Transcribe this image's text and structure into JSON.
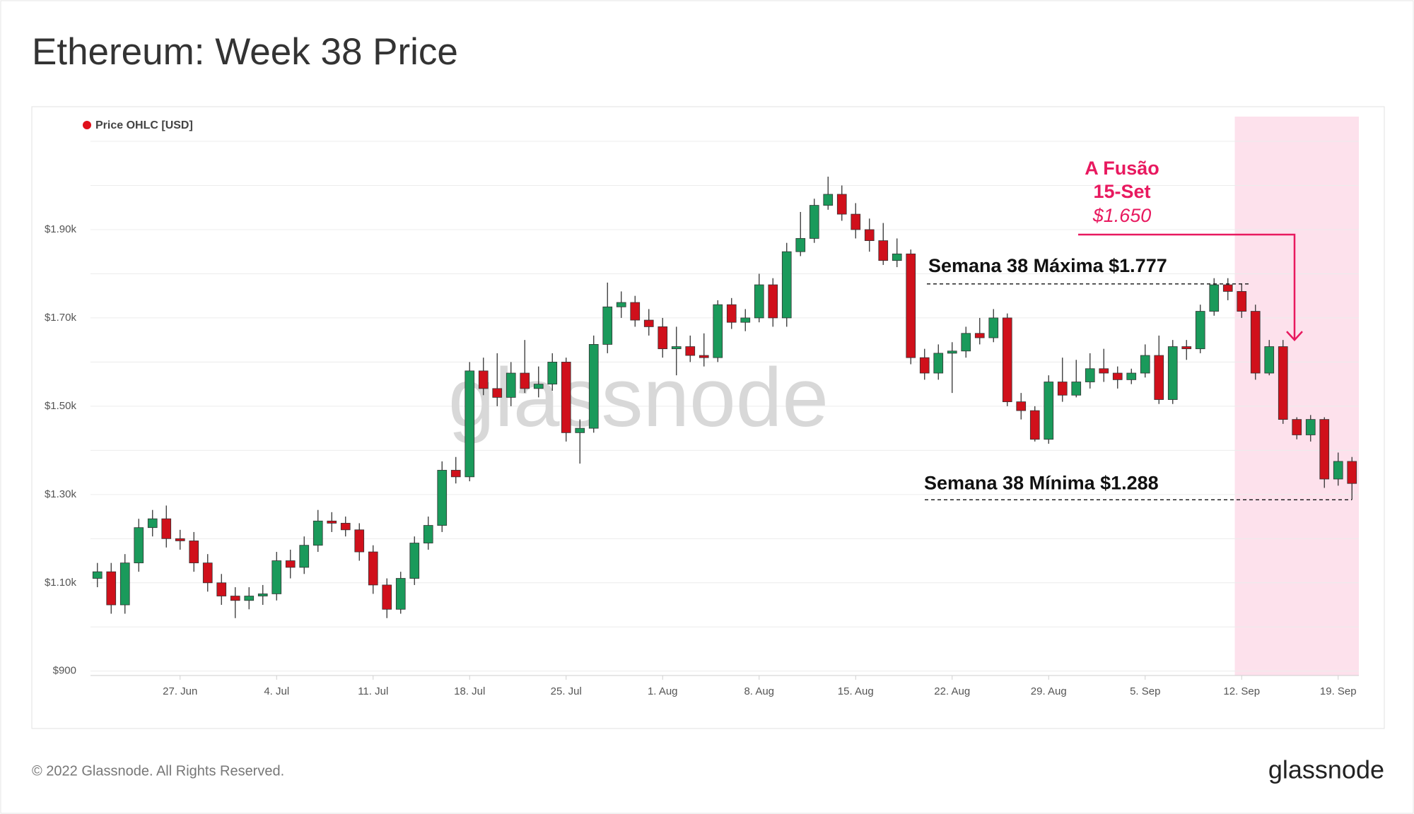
{
  "chart_data": {
    "type": "candlestick",
    "title": "Ethereum: Week 38 Price",
    "legend": "Price OHLC [USD]",
    "legend_color": "#e0101b",
    "watermark": "glassnode",
    "footer": "© 2022 Glassnode. All Rights Reserved.",
    "logo": "glassnode",
    "up_color": "#1a9a5b",
    "down_color": "#d0101b",
    "highlight_from": "Sep 12",
    "highlight_color": "#fde1ec",
    "categories": [
      "Jun 21",
      "Jun 22",
      "Jun 23",
      "Jun 24",
      "Jun 25",
      "Jun 26",
      "Jun 27",
      "Jun 28",
      "Jun 29",
      "Jun 30",
      "Jul 1",
      "Jul 2",
      "Jul 3",
      "Jul 4",
      "Jul 5",
      "Jul 6",
      "Jul 7",
      "Jul 8",
      "Jul 9",
      "Jul 10",
      "Jul 11",
      "Jul 12",
      "Jul 13",
      "Jul 14",
      "Jul 15",
      "Jul 16",
      "Jul 17",
      "Jul 18",
      "Jul 19",
      "Jul 20",
      "Jul 21",
      "Jul 22",
      "Jul 23",
      "Jul 24",
      "Jul 25",
      "Jul 26",
      "Jul 27",
      "Jul 28",
      "Jul 29",
      "Jul 30",
      "Jul 31",
      "Aug 1",
      "Aug 2",
      "Aug 3",
      "Aug 4",
      "Aug 5",
      "Aug 6",
      "Aug 7",
      "Aug 8",
      "Aug 9",
      "Aug 10",
      "Aug 11",
      "Aug 12",
      "Aug 13",
      "Aug 14",
      "Aug 15",
      "Aug 16",
      "Aug 17",
      "Aug 18",
      "Aug 19",
      "Aug 20",
      "Aug 21",
      "Aug 22",
      "Aug 23",
      "Aug 24",
      "Aug 25",
      "Aug 26",
      "Aug 27",
      "Aug 28",
      "Aug 29",
      "Aug 30",
      "Aug 31",
      "Sep 1",
      "Sep 2",
      "Sep 3",
      "Sep 4",
      "Sep 5",
      "Sep 6",
      "Sep 7",
      "Sep 8",
      "Sep 9",
      "Sep 10",
      "Sep 11",
      "Sep 12",
      "Sep 13",
      "Sep 14",
      "Sep 15",
      "Sep 16",
      "Sep 17",
      "Sep 18",
      "Sep 19",
      "Sep 20"
    ],
    "open": [
      1110,
      1125,
      1050,
      1145,
      1225,
      1245,
      1200,
      1195,
      1145,
      1100,
      1070,
      1060,
      1070,
      1075,
      1150,
      1135,
      1185,
      1240,
      1235,
      1220,
      1170,
      1095,
      1040,
      1110,
      1190,
      1230,
      1355,
      1340,
      1580,
      1540,
      1520,
      1575,
      1540,
      1550,
      1600,
      1440,
      1450,
      1640,
      1725,
      1735,
      1695,
      1680,
      1630,
      1635,
      1615,
      1610,
      1730,
      1690,
      1700,
      1775,
      1700,
      1850,
      1880,
      1955,
      1980,
      1935,
      1900,
      1875,
      1830,
      1845,
      1610,
      1575,
      1620,
      1625,
      1665,
      1655,
      1700,
      1510,
      1490,
      1425,
      1555,
      1525,
      1555,
      1585,
      1575,
      1560,
      1575,
      1615,
      1515,
      1635,
      1630,
      1715,
      1775,
      1760,
      1715,
      1575,
      1635,
      1470,
      1435,
      1470,
      1335,
      1375
    ],
    "high": [
      1145,
      1145,
      1165,
      1245,
      1265,
      1275,
      1220,
      1215,
      1165,
      1120,
      1090,
      1090,
      1095,
      1170,
      1175,
      1205,
      1265,
      1260,
      1250,
      1235,
      1185,
      1110,
      1125,
      1205,
      1250,
      1375,
      1385,
      1600,
      1610,
      1620,
      1600,
      1650,
      1590,
      1620,
      1610,
      1470,
      1660,
      1780,
      1760,
      1750,
      1720,
      1700,
      1680,
      1660,
      1665,
      1740,
      1745,
      1720,
      1800,
      1790,
      1870,
      1940,
      1970,
      2020,
      2000,
      1960,
      1925,
      1915,
      1880,
      1855,
      1630,
      1640,
      1645,
      1680,
      1700,
      1720,
      1710,
      1530,
      1500,
      1570,
      1610,
      1605,
      1620,
      1630,
      1590,
      1585,
      1640,
      1660,
      1650,
      1650,
      1730,
      1790,
      1790,
      1777,
      1730,
      1650,
      1650,
      1475,
      1480,
      1475,
      1395,
      1385
    ],
    "low": [
      1090,
      1030,
      1030,
      1125,
      1205,
      1180,
      1175,
      1125,
      1080,
      1050,
      1020,
      1040,
      1050,
      1060,
      1110,
      1120,
      1170,
      1215,
      1205,
      1150,
      1075,
      1020,
      1030,
      1095,
      1175,
      1215,
      1325,
      1330,
      1525,
      1500,
      1500,
      1530,
      1520,
      1535,
      1420,
      1370,
      1440,
      1620,
      1700,
      1680,
      1660,
      1610,
      1570,
      1600,
      1590,
      1600,
      1675,
      1670,
      1690,
      1680,
      1680,
      1840,
      1870,
      1945,
      1920,
      1880,
      1850,
      1820,
      1815,
      1595,
      1560,
      1560,
      1530,
      1610,
      1640,
      1645,
      1500,
      1470,
      1420,
      1415,
      1510,
      1520,
      1540,
      1555,
      1540,
      1550,
      1565,
      1505,
      1505,
      1605,
      1620,
      1705,
      1740,
      1700,
      1560,
      1570,
      1460,
      1425,
      1420,
      1315,
      1320,
      1288
    ],
    "close": [
      1125,
      1050,
      1145,
      1225,
      1245,
      1200,
      1195,
      1145,
      1100,
      1070,
      1060,
      1070,
      1075,
      1150,
      1135,
      1185,
      1240,
      1235,
      1220,
      1170,
      1095,
      1040,
      1110,
      1190,
      1230,
      1355,
      1340,
      1580,
      1540,
      1520,
      1575,
      1540,
      1550,
      1600,
      1440,
      1450,
      1640,
      1725,
      1735,
      1695,
      1680,
      1630,
      1635,
      1615,
      1610,
      1730,
      1690,
      1700,
      1775,
      1700,
      1850,
      1880,
      1955,
      1980,
      1935,
      1900,
      1875,
      1830,
      1845,
      1610,
      1575,
      1620,
      1625,
      1665,
      1655,
      1700,
      1510,
      1490,
      1425,
      1555,
      1525,
      1555,
      1585,
      1575,
      1560,
      1575,
      1615,
      1515,
      1635,
      1630,
      1715,
      1775,
      1760,
      1715,
      1575,
      1635,
      1470,
      1435,
      1470,
      1335,
      1375,
      1325
    ],
    "ylim": [
      890,
      2100
    ],
    "yticks": [
      {
        "value": 900,
        "label": "$900"
      },
      {
        "value": 1100,
        "label": "$1.10k"
      },
      {
        "value": 1300,
        "label": "$1.30k"
      },
      {
        "value": 1500,
        "label": "$1.50k"
      },
      {
        "value": 1700,
        "label": "$1.70k"
      },
      {
        "value": 1900,
        "label": "$1.90k"
      }
    ],
    "yminor": [
      1000,
      1200,
      1400,
      1600,
      1800,
      2000,
      2100
    ],
    "grid": true,
    "xticks": [
      {
        "value": "Jun 27",
        "label": "27. Jun"
      },
      {
        "value": "Jul 4",
        "label": "4. Jul"
      },
      {
        "value": "Jul 11",
        "label": "11. Jul"
      },
      {
        "value": "Jul 18",
        "label": "18. Jul"
      },
      {
        "value": "Jul 25",
        "label": "25. Jul"
      },
      {
        "value": "Aug 1",
        "label": "1. Aug"
      },
      {
        "value": "Aug 8",
        "label": "8. Aug"
      },
      {
        "value": "Aug 15",
        "label": "15. Aug"
      },
      {
        "value": "Aug 22",
        "label": "22. Aug"
      },
      {
        "value": "Aug 29",
        "label": "29. Aug"
      },
      {
        "value": "Sep 5",
        "label": "5. Sep"
      },
      {
        "value": "Sep 12",
        "label": "12. Sep"
      },
      {
        "value": "Sep 19",
        "label": "19. Sep"
      }
    ],
    "annotations": {
      "merge": {
        "lines": [
          "A Fusão",
          "15-Set"
        ],
        "label": "$1.650",
        "value": 1650,
        "color": "#e8195f"
      },
      "week_high": {
        "label": "Semana 38 Máxima $1.777",
        "value": 1777
      },
      "week_low": {
        "label": "Semana 38 Mínima $1.288",
        "value": 1288
      }
    }
  }
}
